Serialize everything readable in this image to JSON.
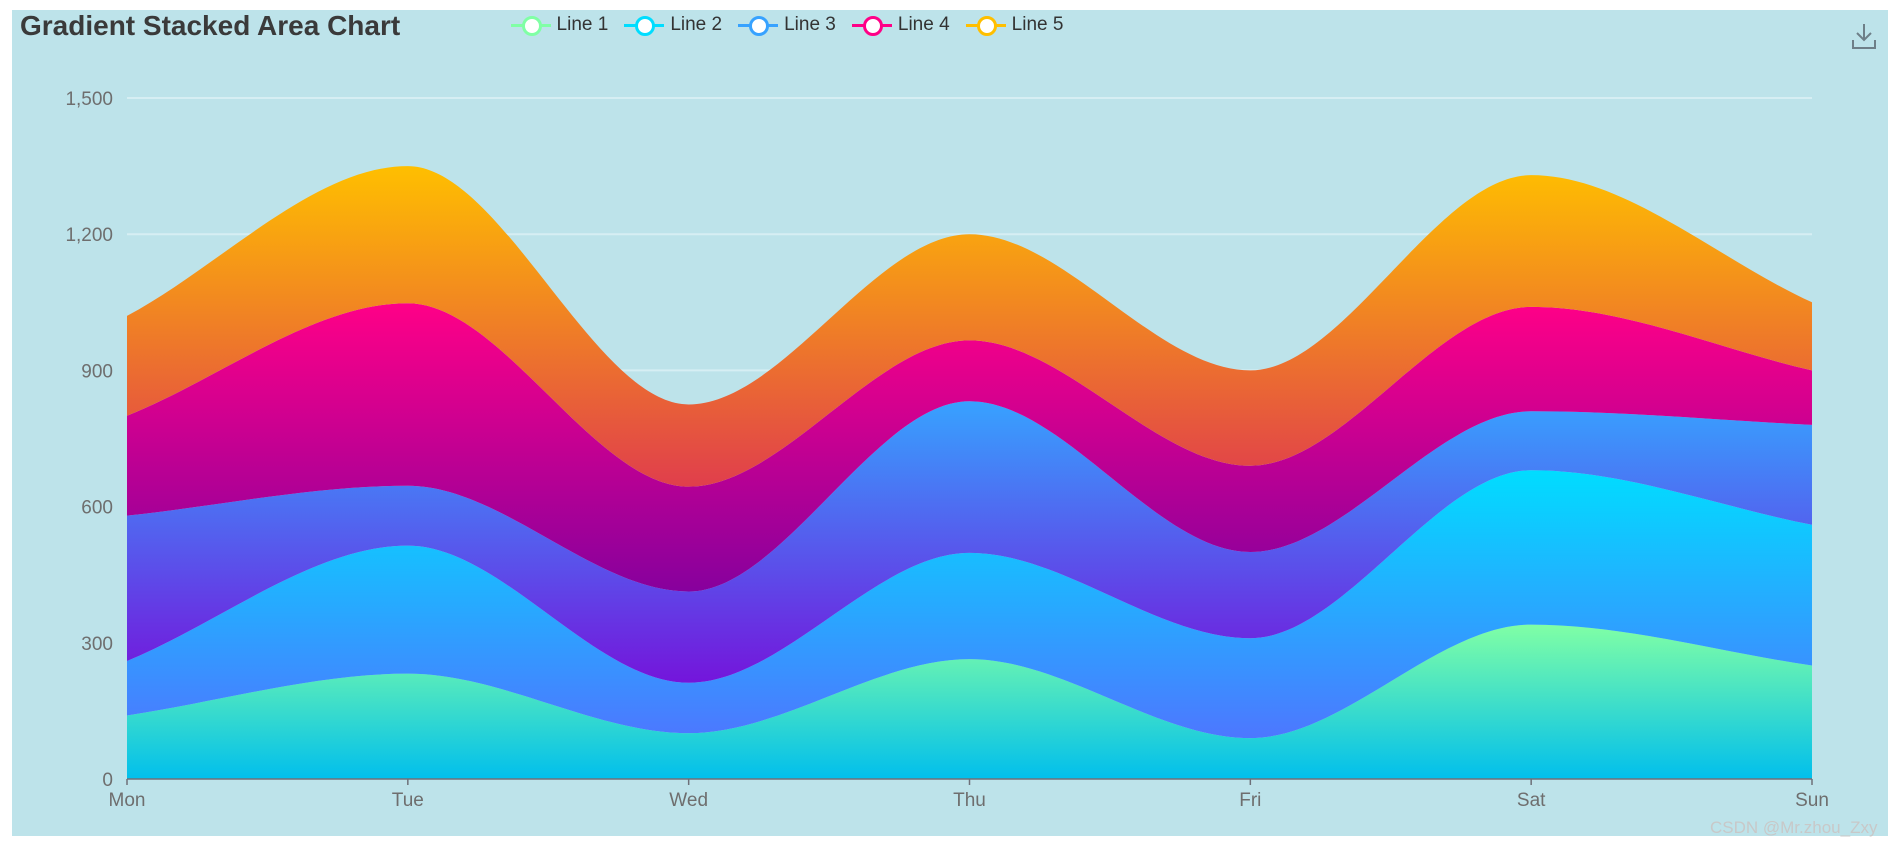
{
  "chart_data": {
    "type": "area",
    "stacked": true,
    "smooth": true,
    "title": "Gradient Stacked Area Chart",
    "categories": [
      "Mon",
      "Tue",
      "Wed",
      "Thu",
      "Fri",
      "Sat",
      "Sun"
    ],
    "series": [
      {
        "name": "Line 1",
        "values": [
          140,
          232,
          101,
          264,
          90,
          340,
          250
        ],
        "color": "#80ffa5",
        "gradient": [
          "#80ffa5",
          "#01bfec"
        ]
      },
      {
        "name": "Line 2",
        "values": [
          120,
          282,
          111,
          234,
          220,
          340,
          310
        ],
        "color": "#00ddff",
        "gradient": [
          "#00ddff",
          "#4d77ff"
        ]
      },
      {
        "name": "Line 3",
        "values": [
          320,
          132,
          201,
          334,
          190,
          130,
          220
        ],
        "color": "#37a2ff",
        "gradient": [
          "#37a2ff",
          "#7415db"
        ]
      },
      {
        "name": "Line 4",
        "values": [
          220,
          402,
          231,
          134,
          190,
          230,
          120
        ],
        "color": "#ff0087",
        "gradient": [
          "#ff0087",
          "#87009d"
        ]
      },
      {
        "name": "Line 5",
        "values": [
          220,
          302,
          181,
          234,
          210,
          290,
          150
        ],
        "color": "#ffbf00",
        "gradient": [
          "#ffbf00",
          "#e03e4c"
        ]
      }
    ],
    "yticks": [
      0,
      300,
      600,
      900,
      1200,
      1500
    ],
    "ytick_labels": [
      "0",
      "300",
      "600",
      "900",
      "1,200",
      "1,500"
    ],
    "ylim": [
      0,
      1500
    ],
    "grid": true,
    "legend_position": "top-center"
  },
  "toolbox": {
    "download_icon": "download-icon"
  },
  "watermark": "CSDN @Mr.zhou_Zxy"
}
